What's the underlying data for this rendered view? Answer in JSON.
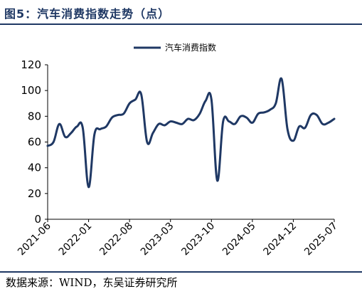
{
  "header": {
    "title": "图5：汽车消费指数走势（点）"
  },
  "footer": {
    "source": "数据来源：WIND，东吴证券研究所"
  },
  "colors": {
    "accent": "#1f3864",
    "series": "#1f3864"
  },
  "chart_data": {
    "type": "line",
    "title": "图5：汽车消费指数走势（点）",
    "xlabel": "",
    "ylabel": "",
    "ylim": [
      0,
      120
    ],
    "yticks": [
      0,
      20,
      40,
      60,
      80,
      100,
      120
    ],
    "xtick_labels": [
      "2021-06",
      "2022-01",
      "2022-08",
      "2023-03",
      "2023-10",
      "2024-05",
      "2024-12",
      "2025-07"
    ],
    "grid": false,
    "legend": "top-center",
    "x": [
      "2021-06",
      "2021-07",
      "2021-08",
      "2021-09",
      "2021-10",
      "2021-11",
      "2021-12",
      "2022-01",
      "2022-02",
      "2022-03",
      "2022-04",
      "2022-05",
      "2022-06",
      "2022-07",
      "2022-08",
      "2022-09",
      "2022-10",
      "2022-11",
      "2022-12",
      "2023-01",
      "2023-02",
      "2023-03",
      "2023-04",
      "2023-05",
      "2023-06",
      "2023-07",
      "2023-08",
      "2023-09",
      "2023-10",
      "2023-11",
      "2023-12",
      "2024-01",
      "2024-02",
      "2024-03",
      "2024-04",
      "2024-05",
      "2024-06",
      "2024-07",
      "2024-08",
      "2024-09",
      "2024-10",
      "2024-11",
      "2024-12",
      "2025-01",
      "2025-02",
      "2025-03",
      "2025-04",
      "2025-05",
      "2025-06",
      "2025-07"
    ],
    "series": [
      {
        "name": "汽车消费指数",
        "values": [
          57,
          60,
          74,
          64,
          67,
          72,
          71,
          25,
          66,
          70,
          72,
          79,
          81,
          82,
          90,
          93,
          97,
          60,
          67,
          74,
          73,
          76,
          75,
          74,
          78,
          77,
          82,
          92,
          93,
          30,
          76,
          76,
          74,
          80,
          79,
          75,
          82,
          83,
          85,
          90,
          109,
          70,
          61,
          72,
          71,
          81,
          81,
          74,
          75,
          78
        ]
      }
    ]
  }
}
